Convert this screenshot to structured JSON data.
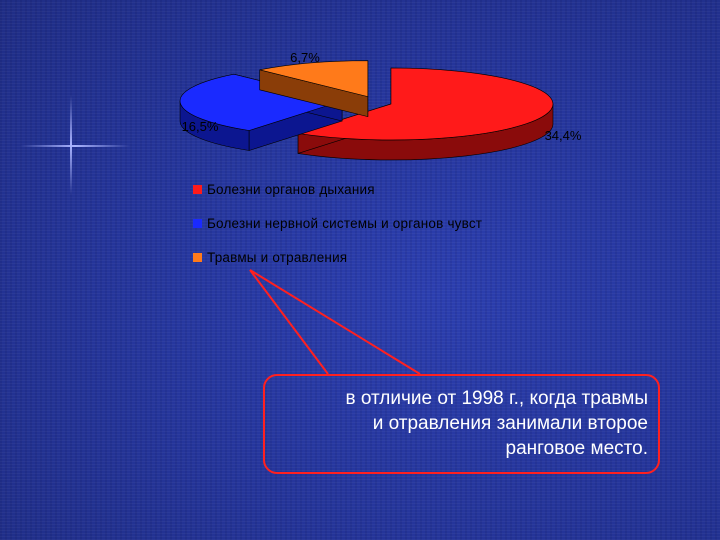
{
  "chart_data": {
    "type": "pie",
    "categories": [
      "Болезни органов дыхания",
      "Болезни нервной системы и органов чувст",
      "Травмы и отравления"
    ],
    "values": [
      34.4,
      16.5,
      6.7
    ],
    "data_labels": [
      "34,4%",
      "16,5%",
      "6,7%"
    ],
    "colors": [
      "#ff1a1a",
      "#1a2aff",
      "#ff7a1a"
    ],
    "dark_colors": [
      "#8a0b0b",
      "#0c1690",
      "#8a3d08"
    ],
    "legend_position": "bottom"
  },
  "note": {
    "line1": "в отличие от 1998 г., когда травмы",
    "line2": "и отравления занимали второе",
    "line3": "ранговое место."
  }
}
